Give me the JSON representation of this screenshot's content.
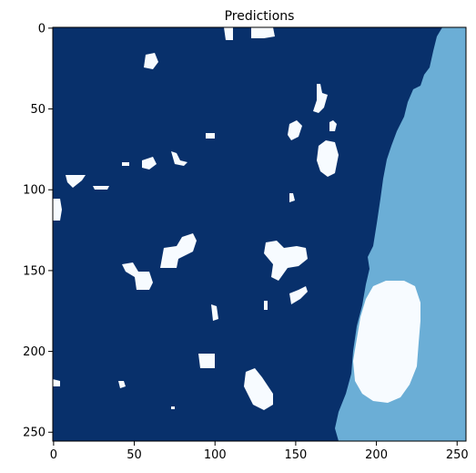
{
  "figure": {
    "title": "Predictions"
  },
  "image_data": {
    "type": "segmentation-mask",
    "width": 256,
    "height": 256,
    "colors": {
      "background": "#08306b",
      "right_region": "#6baed6",
      "blobs": "#f7fbff"
    },
    "x_axis": {
      "ticks": [
        0,
        50,
        100,
        150,
        200,
        250
      ],
      "labels": [
        "0",
        "50",
        "100",
        "150",
        "200",
        "250"
      ]
    },
    "y_axis": {
      "ticks": [
        0,
        50,
        100,
        150,
        200,
        250
      ],
      "labels": [
        "0",
        "50",
        "100",
        "150",
        "200",
        "250"
      ]
    }
  }
}
